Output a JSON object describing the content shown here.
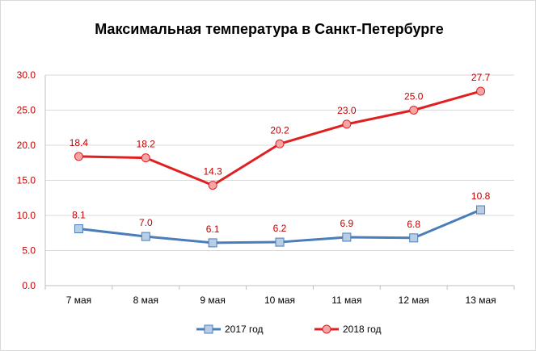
{
  "chart_data": {
    "type": "line",
    "title": "Максимальная  температура  в Санкт-Петербурге",
    "categories": [
      "7 мая",
      "8 мая",
      "9 мая",
      "10 мая",
      "11 мая",
      "12 мая",
      "13 мая"
    ],
    "ylim": [
      0,
      30
    ],
    "yticks": [
      "0.0",
      "5.0",
      "10.0",
      "15.0",
      "20.0",
      "25.0",
      "30.0"
    ],
    "grid": true,
    "legend_position": "bottom",
    "series": [
      {
        "name": "2017 год",
        "values": [
          8.1,
          7.0,
          6.1,
          6.2,
          6.9,
          6.8,
          10.8
        ],
        "labels": [
          "8.1",
          "7.0",
          "6.1",
          "6.2",
          "6.9",
          "6.8",
          "10.8"
        ],
        "color": "#4a7ebb",
        "marker": "square",
        "marker_fill": "#b9cde5"
      },
      {
        "name": "2018 год",
        "values": [
          18.4,
          18.2,
          14.3,
          20.2,
          23.0,
          25.0,
          27.7
        ],
        "labels": [
          "18.4",
          "18.2",
          "14.3",
          "20.2",
          "23.0",
          "25.0",
          "27.7"
        ],
        "color": "#e02020",
        "marker": "circle",
        "marker_fill": "#f4a6a6"
      }
    ],
    "data_label_color": "#c00000",
    "ytick_color": "#c00000"
  }
}
